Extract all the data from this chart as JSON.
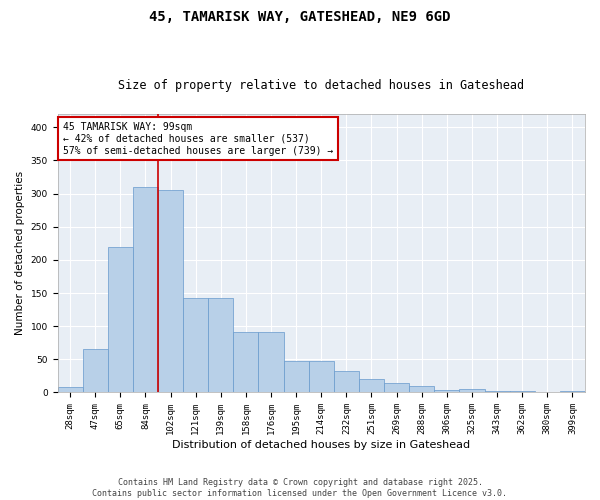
{
  "title1": "45, TAMARISK WAY, GATESHEAD, NE9 6GD",
  "title2": "Size of property relative to detached houses in Gateshead",
  "xlabel": "Distribution of detached houses by size in Gateshead",
  "ylabel": "Number of detached properties",
  "categories": [
    "28sqm",
    "47sqm",
    "65sqm",
    "84sqm",
    "102sqm",
    "121sqm",
    "139sqm",
    "158sqm",
    "176sqm",
    "195sqm",
    "214sqm",
    "232sqm",
    "251sqm",
    "269sqm",
    "288sqm",
    "306sqm",
    "325sqm",
    "343sqm",
    "362sqm",
    "380sqm",
    "399sqm"
  ],
  "values": [
    8,
    65,
    220,
    310,
    305,
    143,
    143,
    91,
    91,
    48,
    48,
    32,
    21,
    14,
    10,
    3,
    5,
    2,
    2,
    1,
    2
  ],
  "bar_color": "#b8d0e8",
  "bar_edge_color": "#6699cc",
  "vline_color": "#cc0000",
  "vline_index": 3.5,
  "annotation_text": "45 TAMARISK WAY: 99sqm\n← 42% of detached houses are smaller (537)\n57% of semi-detached houses are larger (739) →",
  "annotation_box_color": "#cc0000",
  "bg_color": "#e8eef5",
  "ylim": [
    0,
    420
  ],
  "yticks": [
    0,
    50,
    100,
    150,
    200,
    250,
    300,
    350,
    400
  ],
  "footer": "Contains HM Land Registry data © Crown copyright and database right 2025.\nContains public sector information licensed under the Open Government Licence v3.0.",
  "title1_fontsize": 10,
  "title2_fontsize": 8.5,
  "xlabel_fontsize": 8,
  "ylabel_fontsize": 7.5,
  "tick_fontsize": 6.5,
  "ann_fontsize": 7,
  "footer_fontsize": 6
}
